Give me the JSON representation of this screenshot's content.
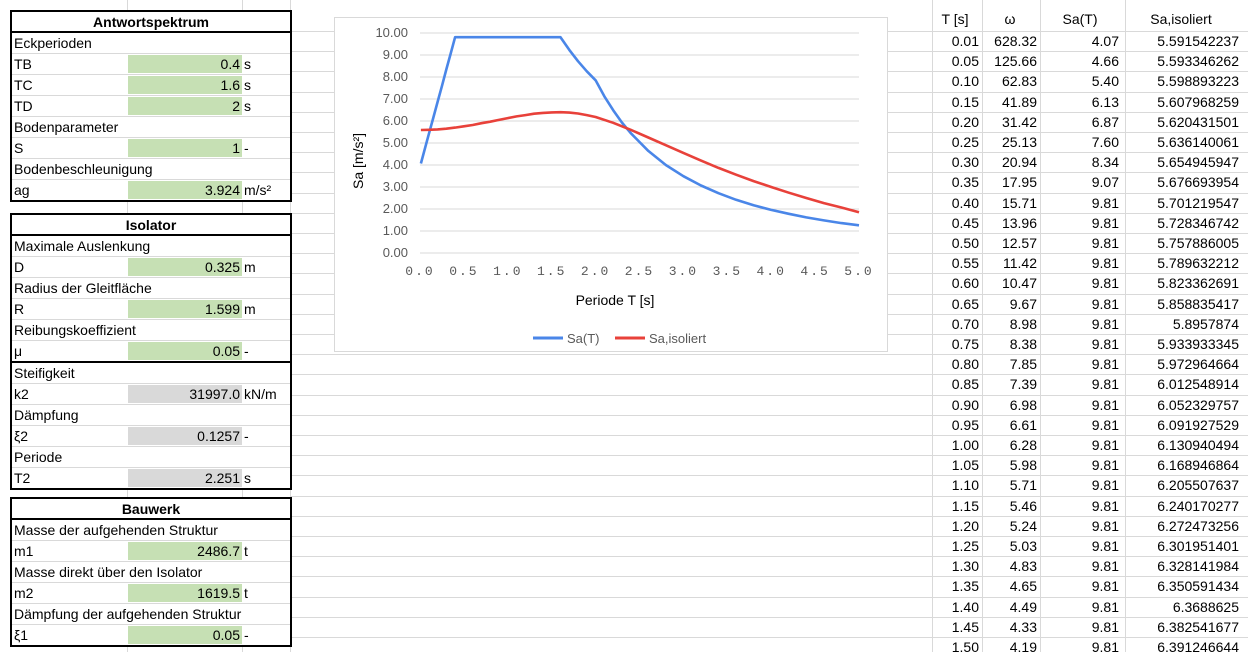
{
  "blocks": {
    "antwort": {
      "title": "Antwortspektrum",
      "rows": [
        {
          "label": "Eckperioden",
          "value": "",
          "unit": ""
        },
        {
          "label": "TB",
          "value": "0.4",
          "unit": "s"
        },
        {
          "label": "TC",
          "value": "1.6",
          "unit": "s"
        },
        {
          "label": "TD",
          "value": "2",
          "unit": "s"
        },
        {
          "label": "Bodenparameter",
          "value": "",
          "unit": ""
        },
        {
          "label": "S",
          "value": "1",
          "unit": "-"
        },
        {
          "label": "Bodenbeschleunigung",
          "value": "",
          "unit": ""
        },
        {
          "label": "ag",
          "value": "3.924",
          "unit": "m/s²"
        }
      ]
    },
    "isolator": {
      "title": "Isolator",
      "rows": [
        {
          "label": "Maximale Auslenkung",
          "value": "",
          "unit": ""
        },
        {
          "label": "D",
          "value": "0.325",
          "unit": "m"
        },
        {
          "label": "Radius der Gleitfläche",
          "value": "",
          "unit": ""
        },
        {
          "label": "R",
          "value": "1.599",
          "unit": "m"
        },
        {
          "label": "Reibungskoeffizient",
          "value": "",
          "unit": ""
        },
        {
          "label": "μ",
          "value": "0.05",
          "unit": "-"
        },
        {
          "label": "Steifigkeit",
          "value": "",
          "unit": ""
        },
        {
          "label": "k2",
          "value": "31997.0",
          "unit": "kN/m"
        },
        {
          "label": "Dämpfung",
          "value": "",
          "unit": ""
        },
        {
          "label": "ξ2",
          "value": "0.1257",
          "unit": "-"
        },
        {
          "label": "Periode",
          "value": "",
          "unit": ""
        },
        {
          "label": "T2",
          "value": "2.251",
          "unit": "s"
        }
      ]
    },
    "bauwerk": {
      "title": "Bauwerk",
      "rows": [
        {
          "label": "Masse der aufgehenden Struktur",
          "value": "",
          "unit": ""
        },
        {
          "label": "m1",
          "value": "2486.7",
          "unit": "t"
        },
        {
          "label": "Masse direkt über den Isolator",
          "value": "",
          "unit": ""
        },
        {
          "label": "m2",
          "value": "1619.5",
          "unit": "t"
        },
        {
          "label": "Dämpfung der aufgehenden Struktur",
          "value": "",
          "unit": ""
        },
        {
          "label": "ξ1",
          "value": "0.05",
          "unit": "-"
        }
      ]
    }
  },
  "table": {
    "headers": [
      "T [s]",
      "ω",
      "Sa(T)",
      "Sa,isoliert"
    ],
    "rows": [
      [
        "0.01",
        "628.32",
        "4.07",
        "5.591542237"
      ],
      [
        "0.05",
        "125.66",
        "4.66",
        "5.593346262"
      ],
      [
        "0.10",
        "62.83",
        "5.40",
        "5.598893223"
      ],
      [
        "0.15",
        "41.89",
        "6.13",
        "5.607968259"
      ],
      [
        "0.20",
        "31.42",
        "6.87",
        "5.620431501"
      ],
      [
        "0.25",
        "25.13",
        "7.60",
        "5.636140061"
      ],
      [
        "0.30",
        "20.94",
        "8.34",
        "5.654945947"
      ],
      [
        "0.35",
        "17.95",
        "9.07",
        "5.676693954"
      ],
      [
        "0.40",
        "15.71",
        "9.81",
        "5.701219547"
      ],
      [
        "0.45",
        "13.96",
        "9.81",
        "5.728346742"
      ],
      [
        "0.50",
        "12.57",
        "9.81",
        "5.757886005"
      ],
      [
        "0.55",
        "11.42",
        "9.81",
        "5.789632212"
      ],
      [
        "0.60",
        "10.47",
        "9.81",
        "5.823362691"
      ],
      [
        "0.65",
        "9.67",
        "9.81",
        "5.858835417"
      ],
      [
        "0.70",
        "8.98",
        "9.81",
        "5.8957874"
      ],
      [
        "0.75",
        "8.38",
        "9.81",
        "5.933933345"
      ],
      [
        "0.80",
        "7.85",
        "9.81",
        "5.972964664"
      ],
      [
        "0.85",
        "7.39",
        "9.81",
        "6.012548914"
      ],
      [
        "0.90",
        "6.98",
        "9.81",
        "6.052329757"
      ],
      [
        "0.95",
        "6.61",
        "9.81",
        "6.091927529"
      ],
      [
        "1.00",
        "6.28",
        "9.81",
        "6.130940494"
      ],
      [
        "1.05",
        "5.98",
        "9.81",
        "6.168946864"
      ],
      [
        "1.10",
        "5.71",
        "9.81",
        "6.205507637"
      ],
      [
        "1.15",
        "5.46",
        "9.81",
        "6.240170277"
      ],
      [
        "1.20",
        "5.24",
        "9.81",
        "6.272473256"
      ],
      [
        "1.25",
        "5.03",
        "9.81",
        "6.301951401"
      ],
      [
        "1.30",
        "4.83",
        "9.81",
        "6.328141984"
      ],
      [
        "1.35",
        "4.65",
        "9.81",
        "6.350591434"
      ],
      [
        "1.40",
        "4.49",
        "9.81",
        "6.3688625"
      ],
      [
        "1.45",
        "4.33",
        "9.81",
        "6.382541677"
      ],
      [
        "1.50",
        "4.19",
        "9.81",
        "6.391246644"
      ]
    ]
  },
  "chart_data": {
    "type": "line",
    "xlabel": "Periode T [s]",
    "ylabel": "Sa [m/s²]",
    "xlim": [
      0,
      5
    ],
    "ylim": [
      0,
      10
    ],
    "xticks": [
      "0.0",
      "0.5",
      "1.0",
      "1.5",
      "2.0",
      "2.5",
      "3.0",
      "3.5",
      "4.0",
      "4.5",
      "5.0"
    ],
    "yticks": [
      "0.00",
      "1.00",
      "2.00",
      "3.00",
      "4.00",
      "5.00",
      "6.00",
      "7.00",
      "8.00",
      "9.00",
      "10.00"
    ],
    "grid": true,
    "legend": "bottom",
    "series": [
      {
        "name": "Sa(T)",
        "color": "#4a86e8",
        "x": [
          0.01,
          0.05,
          0.1,
          0.15,
          0.2,
          0.25,
          0.3,
          0.35,
          0.4,
          1.6,
          1.7,
          1.8,
          1.9,
          2.0,
          2.1,
          2.2,
          2.3,
          2.4,
          2.6,
          2.8,
          3.0,
          3.2,
          3.4,
          3.6,
          3.8,
          4.0,
          4.2,
          4.4,
          4.6,
          4.8,
          5.0
        ],
        "y": [
          4.07,
          4.66,
          5.4,
          6.13,
          6.87,
          7.6,
          8.34,
          9.07,
          9.81,
          9.81,
          9.23,
          8.72,
          8.26,
          7.85,
          7.12,
          6.49,
          5.93,
          5.45,
          4.64,
          4.0,
          3.49,
          3.07,
          2.72,
          2.42,
          2.17,
          1.96,
          1.78,
          1.62,
          1.48,
          1.36,
          1.26
        ]
      },
      {
        "name": "Sa,isoliert",
        "color": "#e8413a",
        "x": [
          0.01,
          0.1,
          0.2,
          0.3,
          0.4,
          0.5,
          0.6,
          0.7,
          0.8,
          0.9,
          1.0,
          1.1,
          1.2,
          1.3,
          1.4,
          1.5,
          1.6,
          1.7,
          1.8,
          1.9,
          2.0,
          2.2,
          2.4,
          2.6,
          2.8,
          3.0,
          3.2,
          3.4,
          3.6,
          3.8,
          4.0,
          4.2,
          4.4,
          4.6,
          4.8,
          5.0
        ],
        "y": [
          5.59,
          5.6,
          5.62,
          5.65,
          5.7,
          5.76,
          5.82,
          5.9,
          5.97,
          6.05,
          6.13,
          6.21,
          6.27,
          6.33,
          6.37,
          6.39,
          6.4,
          6.38,
          6.34,
          6.27,
          6.18,
          5.92,
          5.6,
          5.25,
          4.9,
          4.55,
          4.2,
          3.87,
          3.56,
          3.27,
          3.0,
          2.74,
          2.5,
          2.27,
          2.07,
          1.85
        ]
      }
    ]
  }
}
